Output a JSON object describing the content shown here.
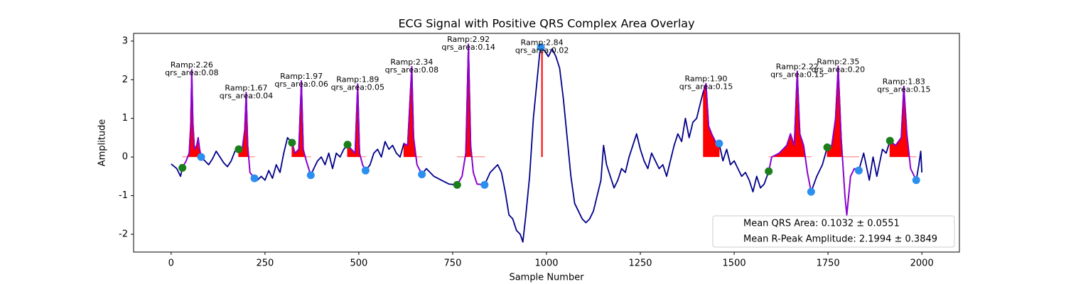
{
  "chart_data": {
    "type": "line",
    "title": "ECG Signal with Positive QRS Complex Area Overlay",
    "x_label": "Sample Number",
    "y_label": "Amplitude",
    "xlim": [
      -100,
      2100
    ],
    "ylim": [
      -2.46,
      3.2
    ],
    "xticks": [
      0,
      250,
      500,
      750,
      1000,
      1250,
      1500,
      1750,
      2000
    ],
    "yticks": [
      -2,
      -1,
      0,
      1,
      2,
      3
    ],
    "x": [
      0,
      15,
      25,
      30,
      40,
      48,
      52,
      55,
      58,
      62,
      68,
      72,
      76,
      80,
      90,
      100,
      110,
      120,
      130,
      140,
      150,
      160,
      170,
      180,
      190,
      196,
      200,
      204,
      210,
      222,
      230,
      240,
      250,
      260,
      270,
      280,
      290,
      300,
      310,
      322,
      330,
      340,
      347,
      352,
      360,
      372,
      380,
      390,
      400,
      410,
      420,
      430,
      440,
      450,
      460,
      470,
      480,
      490,
      497,
      502,
      510,
      518,
      530,
      540,
      550,
      560,
      570,
      580,
      590,
      600,
      610,
      620,
      630,
      641,
      646,
      655,
      668,
      680,
      700,
      720,
      740,
      762,
      775,
      785,
      792,
      798,
      805,
      815,
      835,
      850,
      870,
      880,
      890,
      900,
      910,
      920,
      930,
      937,
      945,
      955,
      965,
      975,
      982,
      987,
      988,
      989,
      995,
      1005,
      1015,
      1025,
      1035,
      1045,
      1055,
      1065,
      1075,
      1085,
      1095,
      1105,
      1115,
      1125,
      1135,
      1145,
      1152,
      1160,
      1170,
      1180,
      1190,
      1200,
      1210,
      1220,
      1230,
      1240,
      1250,
      1260,
      1270,
      1280,
      1290,
      1300,
      1310,
      1320,
      1330,
      1340,
      1350,
      1360,
      1370,
      1380,
      1390,
      1400,
      1410,
      1418,
      1425,
      1432,
      1440,
      1450,
      1460,
      1470,
      1480,
      1490,
      1500,
      1510,
      1520,
      1530,
      1540,
      1550,
      1560,
      1570,
      1580,
      1592,
      1600,
      1620,
      1640,
      1650,
      1660,
      1668,
      1675,
      1685,
      1695,
      1705,
      1720,
      1735,
      1748,
      1760,
      1770,
      1777,
      1785,
      1795,
      1800,
      1810,
      1820,
      1832,
      1845,
      1860,
      1870,
      1880,
      1895,
      1905,
      1915,
      1930,
      1945,
      1952,
      1960,
      1970,
      1985,
      1992,
      1997,
      2000
    ],
    "series": [
      {
        "color": "#00008b",
        "values": [
          -0.18,
          -0.3,
          -0.5,
          -0.28,
          -0.1,
          0.1,
          0.8,
          2.26,
          0.9,
          0.2,
          0.3,
          0.5,
          0.2,
          0.0,
          -0.1,
          -0.2,
          -0.05,
          0.15,
          0.0,
          -0.15,
          -0.25,
          -0.1,
          0.15,
          0.2,
          0.25,
          0.7,
          1.67,
          0.3,
          -0.4,
          -0.55,
          -0.6,
          -0.5,
          -0.6,
          -0.35,
          -0.55,
          -0.2,
          -0.4,
          0.1,
          0.5,
          0.37,
          0.1,
          0.2,
          1.97,
          0.2,
          -0.1,
          -0.47,
          -0.3,
          -0.1,
          0.0,
          -0.2,
          0.1,
          -0.3,
          0.1,
          0.0,
          0.2,
          0.32,
          0.2,
          0.1,
          1.89,
          0.1,
          -0.2,
          -0.35,
          -0.2,
          0.1,
          0.2,
          0.0,
          0.4,
          0.2,
          0.3,
          0.1,
          0.0,
          0.35,
          0.3,
          2.34,
          0.5,
          -0.2,
          -0.45,
          -0.3,
          -0.5,
          -0.6,
          -0.7,
          -0.72,
          -0.5,
          0.1,
          2.92,
          0.3,
          -0.4,
          -0.7,
          -0.72,
          -0.4,
          -0.2,
          -0.4,
          -0.9,
          -1.5,
          -1.6,
          -1.9,
          -2.0,
          -2.2,
          -1.5,
          -0.5,
          1.0,
          2.0,
          2.7,
          2.8,
          2.84,
          2.8,
          2.75,
          2.6,
          2.8,
          2.6,
          2.3,
          1.5,
          0.5,
          -0.5,
          -1.2,
          -1.4,
          -1.6,
          -1.7,
          -1.6,
          -1.4,
          -1.0,
          -0.6,
          0.3,
          -0.2,
          -0.5,
          -0.8,
          -0.6,
          -0.3,
          -0.4,
          0.0,
          0.3,
          0.6,
          0.2,
          -0.1,
          -0.3,
          0.1,
          -0.1,
          -0.3,
          -0.2,
          -0.5,
          -0.1,
          0.3,
          0.6,
          0.4,
          1.0,
          0.5,
          0.9,
          1.0,
          1.4,
          1.7,
          1.9,
          0.8,
          0.6,
          0.4,
          0.35,
          -0.1,
          0.2,
          -0.2,
          -0.1,
          -0.3,
          -0.5,
          -0.4,
          -0.6,
          -0.9,
          -0.5,
          -0.8,
          -0.7,
          -0.37,
          0.0,
          0.1,
          0.3,
          0.6,
          0.3,
          2.22,
          0.6,
          0.3,
          -0.4,
          -0.9,
          -0.5,
          -0.2,
          0.25,
          0.3,
          1.0,
          2.35,
          0.5,
          -1.0,
          -1.5,
          -0.5,
          -0.3,
          -0.35,
          0.1,
          -0.6,
          0.0,
          -0.5,
          0.2,
          0.1,
          0.42,
          0.3,
          0.5,
          1.83,
          0.6,
          -0.3,
          -0.6,
          -0.2,
          0.15,
          -0.4
        ]
      },
      {
        "color": "#9400d3",
        "fill_color": "#ff0000",
        "values": [
          null,
          null,
          null,
          -0.28,
          -0.1,
          0.1,
          0.8,
          2.26,
          0.9,
          0.2,
          0.3,
          0.5,
          0.2,
          0.0,
          null,
          null,
          null,
          null,
          null,
          null,
          null,
          null,
          null,
          0.2,
          0.25,
          0.7,
          1.67,
          0.3,
          -0.4,
          -0.55,
          null,
          null,
          null,
          null,
          null,
          null,
          null,
          null,
          null,
          0.37,
          0.1,
          0.2,
          1.97,
          0.2,
          -0.1,
          -0.47,
          null,
          null,
          null,
          null,
          null,
          null,
          null,
          null,
          null,
          0.32,
          0.2,
          0.1,
          1.89,
          0.1,
          -0.2,
          -0.35,
          null,
          null,
          null,
          null,
          null,
          null,
          null,
          null,
          null,
          0.35,
          0.3,
          2.34,
          0.5,
          -0.2,
          -0.45,
          null,
          null,
          null,
          null,
          -0.72,
          -0.5,
          0.1,
          2.92,
          0.3,
          -0.4,
          -0.7,
          -0.72,
          null,
          null,
          null,
          null,
          null,
          null,
          null,
          null,
          null,
          null,
          null,
          null,
          null,
          null,
          2.8,
          2.84,
          2.8,
          null,
          null,
          null,
          null,
          null,
          null,
          null,
          null,
          null,
          null,
          null,
          null,
          null,
          null,
          null,
          null,
          null,
          null,
          null,
          null,
          null,
          null,
          null,
          null,
          null,
          null,
          null,
          null,
          null,
          null,
          null,
          null,
          null,
          null,
          null,
          null,
          null,
          null,
          null,
          null,
          null,
          null,
          null,
          1.7,
          1.9,
          0.8,
          0.6,
          0.4,
          0.35,
          null,
          null,
          null,
          null,
          null,
          null,
          null,
          null,
          null,
          null,
          null,
          null,
          -0.37,
          0.0,
          0.1,
          0.3,
          0.6,
          0.3,
          2.22,
          0.6,
          0.3,
          -0.4,
          -0.9,
          null,
          null,
          0.25,
          0.3,
          1.0,
          2.35,
          0.5,
          -1.0,
          -1.5,
          -0.5,
          -0.3,
          -0.35,
          null,
          null,
          null,
          null,
          null,
          null,
          0.42,
          0.3,
          0.5,
          1.83,
          0.6,
          -0.3,
          -0.6,
          null,
          null,
          null
        ]
      }
    ],
    "points": [
      {
        "color": "#1a7f1a",
        "x": [
          30,
          180,
          322,
          470,
          762,
          1592,
          1748,
          1915
        ],
        "values": [
          -0.28,
          0.2,
          0.37,
          0.32,
          -0.72,
          -0.37,
          0.25,
          0.42
        ]
      },
      {
        "color": "#2b8ff0",
        "x": [
          80,
          222,
          372,
          518,
          668,
          835,
          985,
          1460,
          1705,
          1832,
          1985
        ],
        "values": [
          0.0,
          -0.55,
          -0.47,
          -0.35,
          -0.45,
          -0.72,
          2.84,
          0.35,
          -0.9,
          -0.35,
          -0.6
        ]
      }
    ],
    "annotations": [
      {
        "x": 55,
        "y": 2.26,
        "lines": [
          "Ramp:2.26",
          "qrs_area:0.08"
        ]
      },
      {
        "x": 200,
        "y": 1.67,
        "lines": [
          "Ramp:1.67",
          "qrs_area:0.04"
        ]
      },
      {
        "x": 347,
        "y": 1.97,
        "lines": [
          "Ramp:1.97",
          "qrs_area:0.06"
        ]
      },
      {
        "x": 497,
        "y": 1.89,
        "lines": [
          "Ramp:1.89",
          "qrs_area:0.05"
        ]
      },
      {
        "x": 641,
        "y": 2.34,
        "lines": [
          "Ramp:2.34",
          "qrs_area:0.08"
        ]
      },
      {
        "x": 792,
        "y": 2.92,
        "lines": [
          "Ramp:2.92",
          "qrs_area:0.14"
        ]
      },
      {
        "x": 988,
        "y": 2.84,
        "lines": [
          "Ramp:2.84",
          "qrs_area:0.02"
        ]
      },
      {
        "x": 1425,
        "y": 1.9,
        "lines": [
          "Ramp:1.90",
          "qrs_area:0.15"
        ]
      },
      {
        "x": 1668,
        "y": 2.22,
        "lines": [
          "Ramp:2.22",
          "qrs_area:0.15"
        ]
      },
      {
        "x": 1777,
        "y": 2.35,
        "lines": [
          "Ramp:2.35",
          "qrs_area:0.20"
        ]
      },
      {
        "x": 1952,
        "y": 1.83,
        "lines": [
          "Ramp:1.83",
          "qrs_area:0.15"
        ]
      }
    ],
    "legend": {
      "loc": "lower right",
      "entries": [
        "Mean QRS Area: 0.1032 ± 0.0551",
        "Mean R-Peak Amplitude: 2.1994 ± 0.3849"
      ]
    }
  }
}
